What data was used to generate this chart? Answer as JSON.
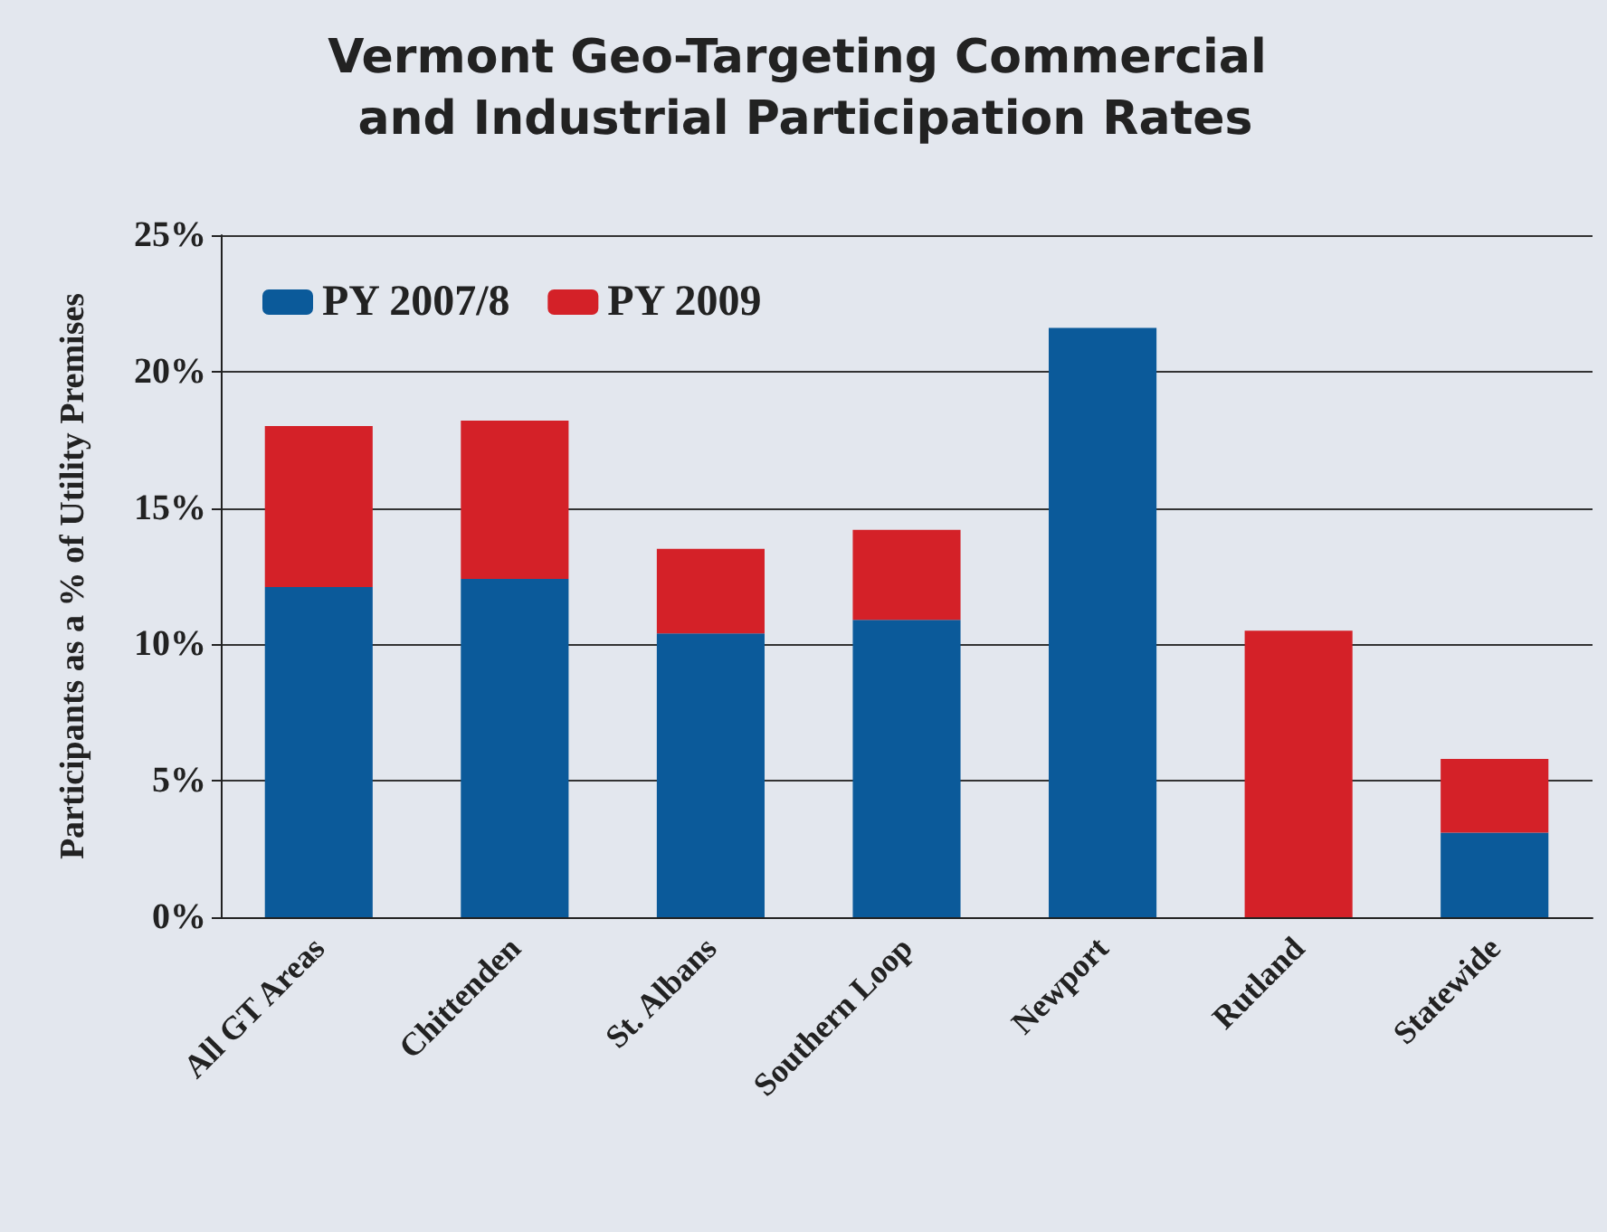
{
  "chart_data": {
    "type": "bar",
    "title": "Vermont Geo-Targeting Commercial and Industrial Participation Rates",
    "ylabel": "Participants as a % of Utility Premises",
    "categories": [
      "All GT Areas",
      "Chittenden",
      "St. Albans",
      "Southern Loop",
      "Newport",
      "Rutland",
      "Statewide"
    ],
    "series": [
      {
        "name": "PY 2007/8",
        "color": "#0b5a9a",
        "values": [
          12.1,
          12.4,
          10.4,
          10.9,
          21.6,
          null,
          3.1
        ]
      },
      {
        "name": "PY 2009",
        "color": "#d42128",
        "values": [
          5.9,
          5.8,
          3.1,
          3.3,
          null,
          10.5,
          2.7
        ]
      }
    ],
    "stacked": true,
    "ylim": [
      0,
      25
    ],
    "yticks": [
      {
        "value": 0,
        "label": "0%"
      },
      {
        "value": 5,
        "label": "5%"
      },
      {
        "value": 10,
        "label": "10%"
      },
      {
        "value": 15,
        "label": "15%"
      },
      {
        "value": 20,
        "label": "20%"
      },
      {
        "value": 25,
        "label": "25%"
      }
    ],
    "grid": "y",
    "legend": "top left"
  }
}
